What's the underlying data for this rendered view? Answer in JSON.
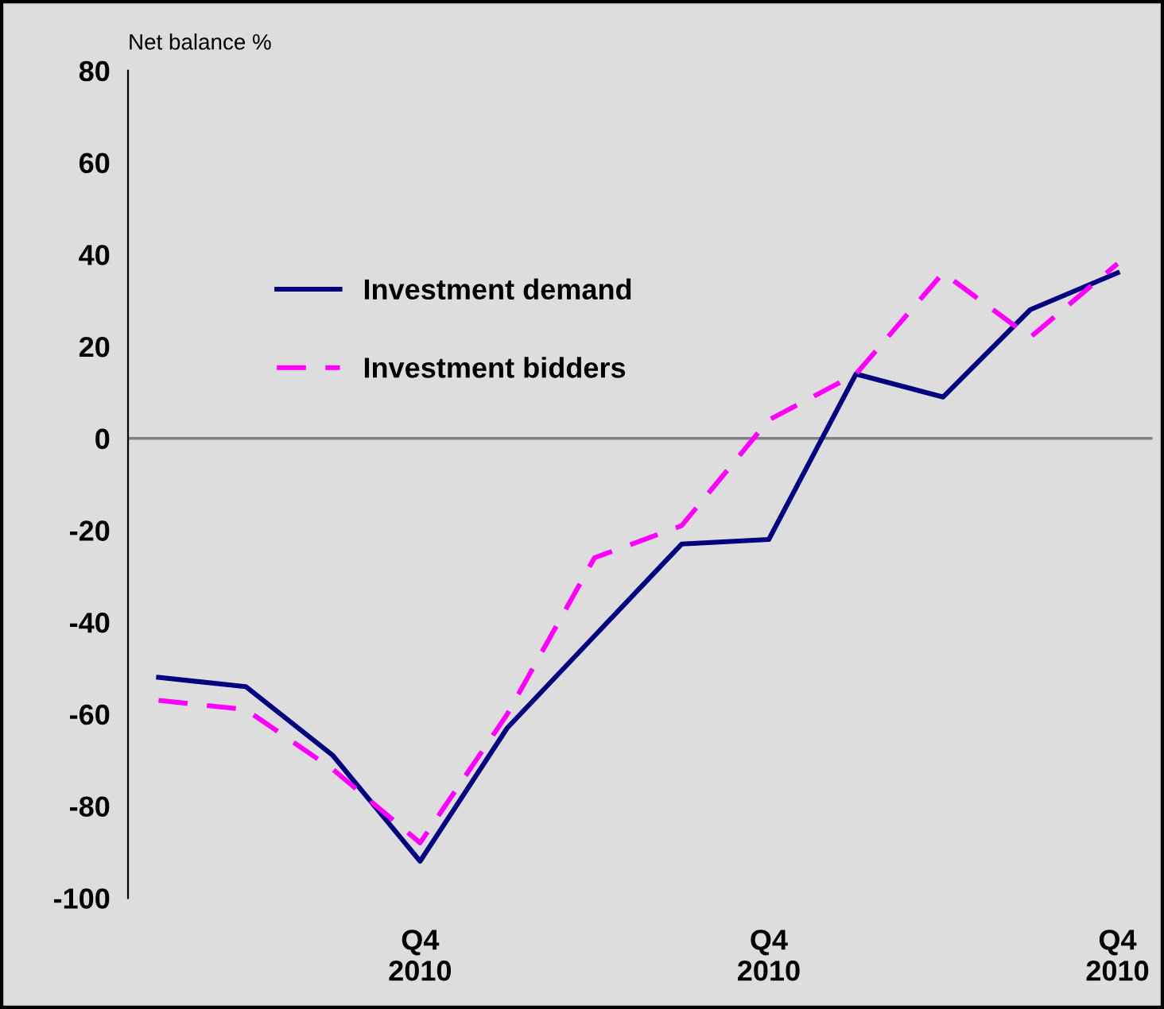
{
  "chart_data": {
    "type": "line",
    "ylabel": "Net balance %",
    "categories": [
      null,
      null,
      null,
      "Q4\n2010",
      null,
      null,
      null,
      "Q4\n2010",
      null,
      null,
      null,
      "Q4\n2010"
    ],
    "series": [
      {
        "name": "Investment demand",
        "color": "#000080",
        "line_style": "solid",
        "values": [
          -52,
          -54,
          -69,
          -92,
          -63,
          -43,
          -23,
          -22,
          14,
          9,
          28,
          36
        ]
      },
      {
        "name": "Investment bidders",
        "color": "#ff00ff",
        "line_style": "dashed",
        "values": [
          -57,
          -59,
          -72,
          -88,
          -60,
          -26,
          -19,
          4,
          14,
          36,
          22,
          38
        ]
      }
    ],
    "ylim": [
      -100,
      80
    ],
    "yticks": [
      -100,
      -80,
      -60,
      -40,
      -20,
      0,
      20,
      40,
      60,
      80
    ],
    "ref_lines": [
      {
        "axis": "y",
        "value": 0,
        "color": "#808080"
      }
    ],
    "grid": false,
    "legend": "top left",
    "marker": "none"
  }
}
